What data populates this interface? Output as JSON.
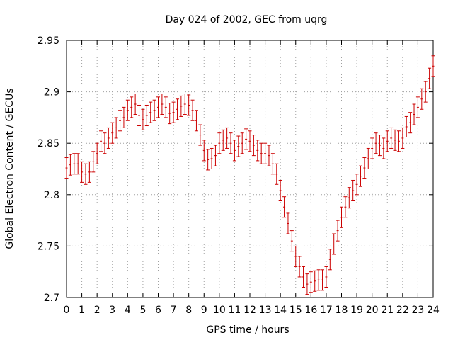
{
  "chart_data": {
    "type": "scatter",
    "title": "Day 024 of 2002, GEC from uqrg",
    "xlabel": "GPS time / hours",
    "ylabel": "Global Electron Content / GECUs",
    "xlim": [
      0,
      24
    ],
    "ylim": [
      2.7,
      2.95
    ],
    "x_ticks": [
      "0",
      "1",
      "2",
      "3",
      "4",
      "5",
      "6",
      "7",
      "8",
      "9",
      "10",
      "11",
      "12",
      "13",
      "14",
      "15",
      "16",
      "17",
      "18",
      "19",
      "20",
      "21",
      "22",
      "23",
      "24"
    ],
    "y_ticks": [
      "2.7",
      "2.75",
      "2.8",
      "2.85",
      "2.9",
      "2.95"
    ],
    "grid": true,
    "marker_color": "#cc0000",
    "error_bar": 0.01,
    "series": [
      {
        "x": [
          0.0,
          0.25,
          0.5,
          0.75,
          1.0,
          1.25,
          1.5,
          1.75,
          2.0,
          2.25,
          2.5,
          2.75,
          3.0,
          3.25,
          3.5,
          3.75,
          4.0,
          4.25,
          4.5,
          4.75,
          5.0,
          5.25,
          5.5,
          5.75,
          6.0,
          6.25,
          6.5,
          6.75,
          7.0,
          7.25,
          7.5,
          7.75,
          8.0,
          8.25,
          8.5,
          8.75,
          9.0,
          9.25,
          9.5,
          9.75,
          10.0,
          10.25,
          10.5,
          10.75,
          11.0,
          11.25,
          11.5,
          11.75,
          12.0,
          12.25,
          12.5,
          12.75,
          13.0,
          13.25,
          13.5,
          13.75,
          14.0,
          14.25,
          14.5,
          14.75,
          15.0,
          15.25,
          15.5,
          15.75,
          16.0,
          16.25,
          16.5,
          16.75,
          17.0,
          17.25,
          17.5,
          17.75,
          18.0,
          18.25,
          18.5,
          18.75,
          19.0,
          19.25,
          19.5,
          19.75,
          20.0,
          20.25,
          20.5,
          20.75,
          21.0,
          21.25,
          21.5,
          21.75,
          22.0,
          22.25,
          22.5,
          22.75,
          23.0,
          23.25,
          23.5,
          23.75,
          24.0
        ],
        "y": [
          2.826,
          2.829,
          2.83,
          2.83,
          2.822,
          2.82,
          2.822,
          2.832,
          2.84,
          2.852,
          2.85,
          2.855,
          2.86,
          2.865,
          2.872,
          2.875,
          2.882,
          2.885,
          2.888,
          2.877,
          2.873,
          2.877,
          2.88,
          2.882,
          2.885,
          2.888,
          2.885,
          2.879,
          2.88,
          2.883,
          2.886,
          2.888,
          2.887,
          2.882,
          2.872,
          2.858,
          2.843,
          2.834,
          2.835,
          2.838,
          2.85,
          2.853,
          2.855,
          2.85,
          2.843,
          2.847,
          2.85,
          2.854,
          2.852,
          2.848,
          2.843,
          2.84,
          2.84,
          2.838,
          2.83,
          2.82,
          2.804,
          2.788,
          2.772,
          2.755,
          2.74,
          2.73,
          2.72,
          2.713,
          2.715,
          2.716,
          2.717,
          2.717,
          2.72,
          2.737,
          2.752,
          2.765,
          2.778,
          2.788,
          2.797,
          2.804,
          2.81,
          2.818,
          2.826,
          2.835,
          2.845,
          2.85,
          2.848,
          2.845,
          2.852,
          2.855,
          2.853,
          2.852,
          2.855,
          2.866,
          2.87,
          2.878,
          2.885,
          2.893,
          2.9,
          2.913,
          2.925
        ]
      }
    ]
  }
}
